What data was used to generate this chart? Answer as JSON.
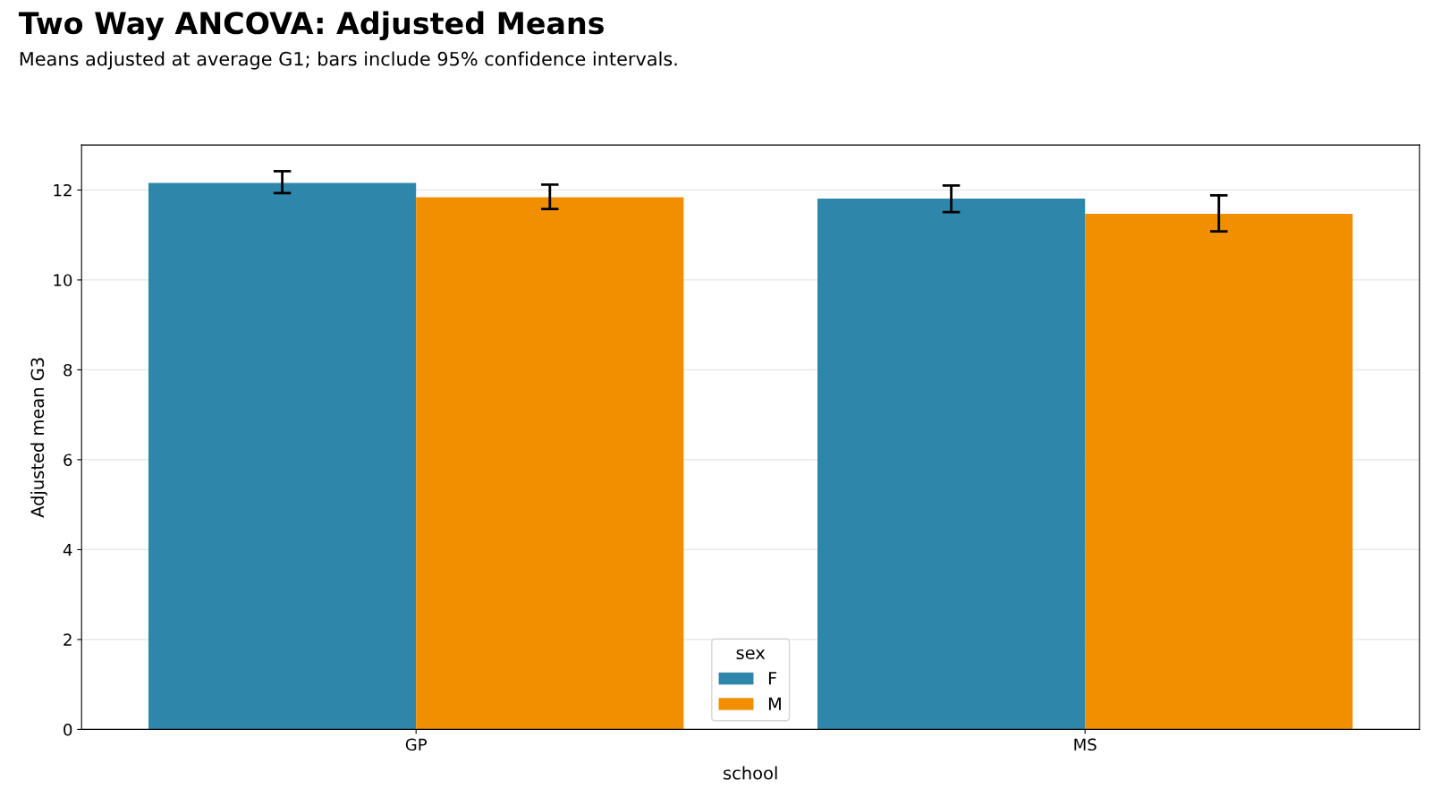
{
  "chart_data": {
    "type": "bar",
    "title": "Two Way ANCOVA: Adjusted Means",
    "subtitle": "Means adjusted at average G1; bars include 95% confidence intervals.",
    "xlabel": "school",
    "ylabel": "Adjusted mean G3",
    "legend_title": "sex",
    "categories": [
      "GP",
      "MS"
    ],
    "series": [
      {
        "name": "F",
        "color": "#2e86ab",
        "values": [
          12.16,
          11.81
        ],
        "errors": [
          [
            11.93,
            12.42
          ],
          [
            11.51,
            12.1
          ]
        ]
      },
      {
        "name": "M",
        "color": "#f18f01",
        "values": [
          11.84,
          11.47
        ],
        "errors": [
          [
            11.58,
            12.12
          ],
          [
            11.08,
            11.88
          ]
        ]
      }
    ],
    "ylim": [
      0,
      13
    ],
    "yticks": [
      0,
      2,
      4,
      6,
      8,
      10,
      12
    ],
    "grid": "y",
    "legend": "bottom"
  }
}
